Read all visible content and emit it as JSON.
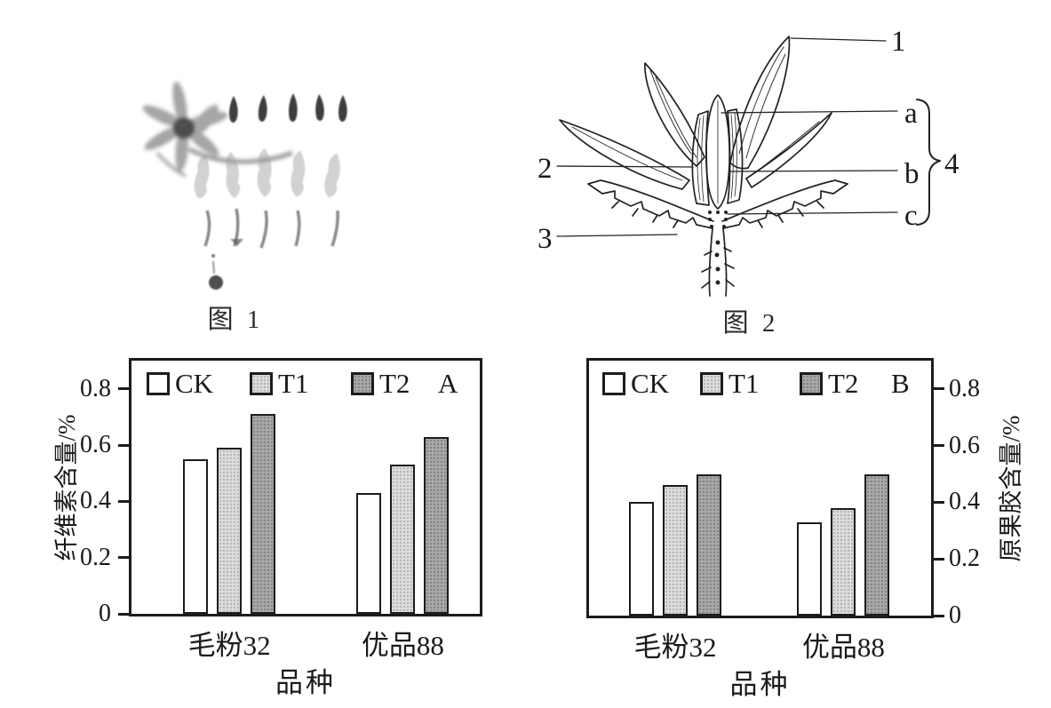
{
  "figure1": {
    "caption": "图 1",
    "description": "photo of a whole flower and its dissected parts laid out in rows: 5 dark sepals, 5 light petals, 5 stamens, 1 pistil"
  },
  "figure2": {
    "caption": "图 2",
    "labels": {
      "petal": "1",
      "stamen": "2",
      "sepal": "3",
      "stigma": "a",
      "style": "b",
      "ovary": "c",
      "pistil_group": "4"
    }
  },
  "chart_data": [
    {
      "type": "bar",
      "corner_label": "A",
      "categories": [
        "毛粉32",
        "优品88"
      ],
      "series": [
        {
          "name": "CK",
          "values": [
            0.55,
            0.43
          ],
          "fill": "#ffffff"
        },
        {
          "name": "T1",
          "values": [
            0.59,
            0.53
          ],
          "fill": "#dcdcdc"
        },
        {
          "name": "T2",
          "values": [
            0.71,
            0.63
          ],
          "fill": "#a8a8a8"
        }
      ],
      "xlabel": "品种",
      "ylabel": "纤维素含量/%",
      "yticks": [
        0,
        0.2,
        0.4,
        0.6,
        0.8
      ],
      "ylim": [
        0,
        0.9
      ],
      "axis_side": "left",
      "grid": false,
      "legend_position": "top-inside"
    },
    {
      "type": "bar",
      "corner_label": "B",
      "categories": [
        "毛粉32",
        "优品88"
      ],
      "series": [
        {
          "name": "CK",
          "values": [
            0.4,
            0.33
          ],
          "fill": "#ffffff"
        },
        {
          "name": "T1",
          "values": [
            0.46,
            0.38
          ],
          "fill": "#dcdcdc"
        },
        {
          "name": "T2",
          "values": [
            0.5,
            0.5
          ],
          "fill": "#a8a8a8"
        }
      ],
      "xlabel": "品种",
      "ylabel": "原果胶含量/%",
      "yticks": [
        0,
        0.2,
        0.4,
        0.6,
        0.8
      ],
      "ylim": [
        0,
        0.9
      ],
      "axis_side": "right",
      "grid": false,
      "legend_position": "top-inside"
    }
  ],
  "colors": {
    "stroke": "#1c1c1c",
    "ck_fill": "#ffffff",
    "t1_fill": "#dcdcdc",
    "t2_fill": "#a8a8a8"
  }
}
